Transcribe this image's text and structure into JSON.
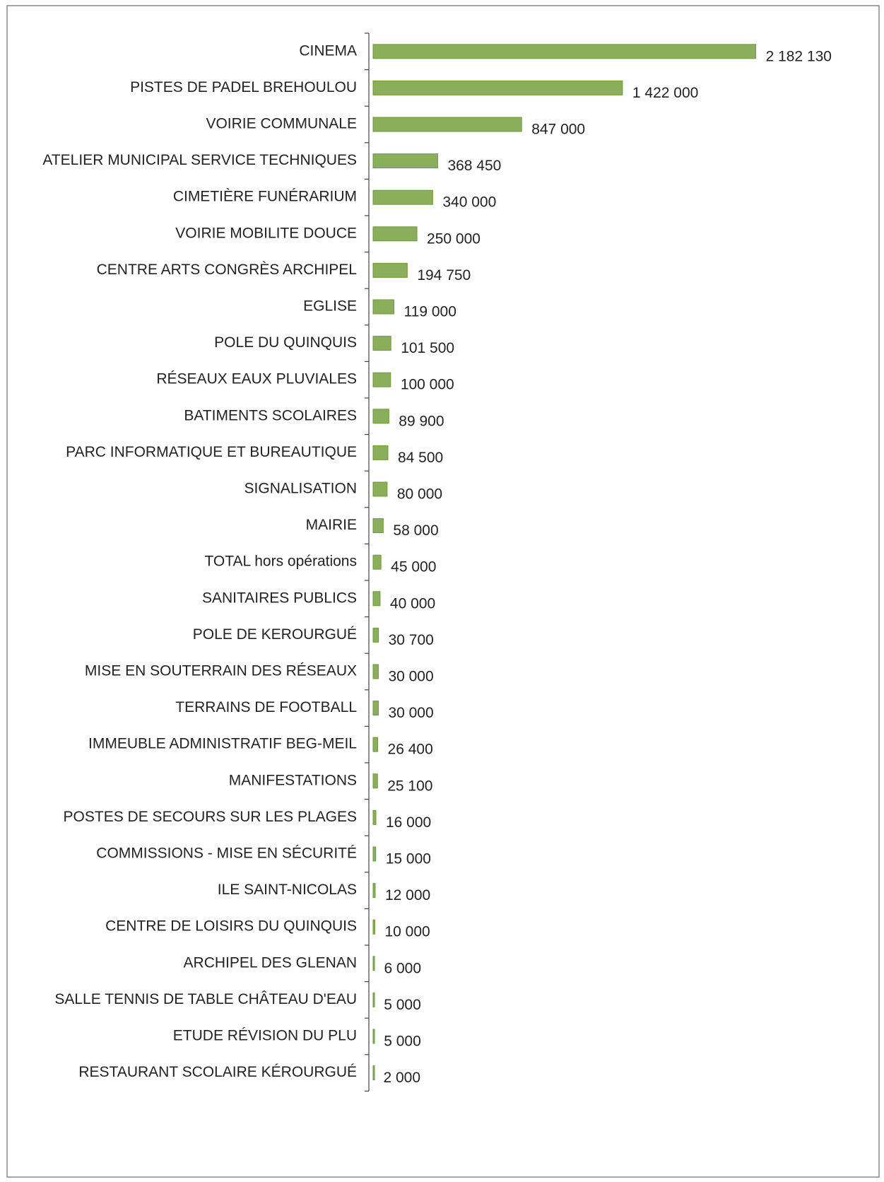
{
  "chart_data": {
    "type": "barh",
    "categories": [
      "CINEMA",
      "PISTES DE PADEL BREHOULOU",
      "VOIRIE COMMUNALE",
      "ATELIER MUNICIPAL SERVICE TECHNIQUES",
      "CIMETIÈRE FUNÉRARIUM",
      "VOIRIE MOBILITE DOUCE",
      "CENTRE ARTS CONGRÈS ARCHIPEL",
      "EGLISE",
      "POLE DU QUINQUIS",
      "RÉSEAUX EAUX PLUVIALES",
      "BATIMENTS SCOLAIRES",
      "PARC INFORMATIQUE ET BUREAUTIQUE",
      "SIGNALISATION",
      "MAIRIE",
      "TOTAL hors opérations",
      "SANITAIRES PUBLICS",
      "POLE DE KEROURGUÉ",
      "MISE EN SOUTERRAIN DES RÉSEAUX",
      "TERRAINS DE FOOTBALL",
      "IMMEUBLE ADMINISTRATIF BEG-MEIL",
      "MANIFESTATIONS",
      "POSTES DE SECOURS SUR LES PLAGES",
      "COMMISSIONS - MISE EN SÉCURITÉ",
      "ILE SAINT-NICOLAS",
      "CENTRE DE LOISIRS DU QUINQUIS",
      "ARCHIPEL DES GLENAN",
      "SALLE TENNIS DE TABLE CHÂTEAU D'EAU",
      "ETUDE RÉVISION DU PLU",
      "RESTAURANT SCOLAIRE KÉROURGUÉ"
    ],
    "values": [
      2182130,
      1422000,
      847000,
      368450,
      340000,
      250000,
      194750,
      119000,
      101500,
      100000,
      89900,
      84500,
      80000,
      58000,
      45000,
      40000,
      30700,
      30000,
      30000,
      26400,
      25100,
      16000,
      15000,
      12000,
      10000,
      6000,
      5000,
      5000,
      2000
    ],
    "value_labels": [
      "2 182 130",
      "1 422 000",
      "847 000",
      "368 450",
      "340 000",
      "250 000",
      "194 750",
      "119 000",
      "101 500",
      "100 000",
      "89 900",
      "84 500",
      "80 000",
      "58 000",
      "45 000",
      "40 000",
      "30 700",
      "30 000",
      "30 000",
      "26 400",
      "25 100",
      "16 000",
      "15 000",
      "12 000",
      "10 000",
      "6 000",
      "5 000",
      "5 000",
      "2 000"
    ],
    "color": "#8aae5b",
    "xlim": [
      0,
      2200000
    ]
  }
}
